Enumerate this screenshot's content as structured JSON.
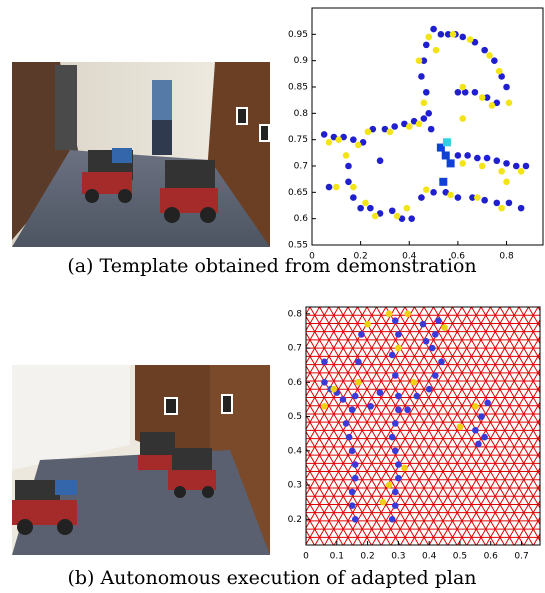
{
  "captions": [
    "(a) Template obtained from demonstration",
    "(b) Autonomous execution of adapted plan"
  ],
  "chart_data": [
    {
      "type": "scatter",
      "xlim": [
        0,
        0.95
      ],
      "xticks": [
        0,
        0.2,
        0.4,
        0.6,
        0.8
      ],
      "ylim": [
        0.55,
        1.0
      ],
      "yticks": [
        0.55,
        0.6,
        0.65,
        0.7,
        0.75,
        0.8,
        0.85,
        0.9,
        0.95
      ],
      "series": [
        {
          "color": "#1f1fd0",
          "marker": "circle",
          "x": [
            0.5,
            0.53,
            0.56,
            0.59,
            0.62,
            0.67,
            0.71,
            0.75,
            0.78,
            0.8,
            0.47,
            0.46,
            0.45,
            0.47,
            0.48,
            0.49,
            0.6,
            0.63,
            0.67,
            0.72,
            0.76,
            0.05,
            0.09,
            0.13,
            0.17,
            0.21,
            0.25,
            0.3,
            0.34,
            0.38,
            0.42,
            0.46,
            0.6,
            0.64,
            0.68,
            0.72,
            0.76,
            0.8,
            0.84,
            0.88,
            0.15,
            0.15,
            0.17,
            0.2,
            0.24,
            0.28,
            0.33,
            0.37,
            0.41,
            0.45,
            0.5,
            0.55,
            0.6,
            0.66,
            0.71,
            0.76,
            0.81,
            0.86,
            0.07,
            0.28
          ],
          "y": [
            0.96,
            0.95,
            0.95,
            0.95,
            0.945,
            0.935,
            0.92,
            0.9,
            0.87,
            0.85,
            0.93,
            0.9,
            0.87,
            0.84,
            0.8,
            0.77,
            0.84,
            0.84,
            0.84,
            0.83,
            0.82,
            0.76,
            0.755,
            0.755,
            0.75,
            0.745,
            0.77,
            0.77,
            0.775,
            0.78,
            0.785,
            0.79,
            0.72,
            0.72,
            0.715,
            0.715,
            0.71,
            0.705,
            0.7,
            0.7,
            0.7,
            0.67,
            0.64,
            0.62,
            0.62,
            0.61,
            0.615,
            0.6,
            0.6,
            0.64,
            0.65,
            0.65,
            0.64,
            0.64,
            0.635,
            0.63,
            0.63,
            0.62,
            0.66,
            0.71
          ]
        },
        {
          "color": "#f2e416",
          "marker": "circle",
          "x": [
            0.48,
            0.51,
            0.58,
            0.65,
            0.73,
            0.77,
            0.81,
            0.44,
            0.46,
            0.62,
            0.7,
            0.74,
            0.07,
            0.11,
            0.19,
            0.23,
            0.32,
            0.4,
            0.44,
            0.62,
            0.7,
            0.78,
            0.86,
            0.17,
            0.22,
            0.26,
            0.35,
            0.39,
            0.47,
            0.57,
            0.68,
            0.78,
            0.14,
            0.1,
            0.8,
            0.62
          ],
          "y": [
            0.945,
            0.92,
            0.95,
            0.94,
            0.91,
            0.88,
            0.82,
            0.9,
            0.82,
            0.85,
            0.83,
            0.815,
            0.745,
            0.75,
            0.74,
            0.765,
            0.765,
            0.775,
            0.78,
            0.705,
            0.7,
            0.69,
            0.69,
            0.66,
            0.63,
            0.605,
            0.605,
            0.62,
            0.655,
            0.645,
            0.64,
            0.62,
            0.72,
            0.66,
            0.67,
            0.79
          ]
        },
        {
          "color": "#1040d8",
          "marker": "square",
          "x": [
            0.55,
            0.57,
            0.54,
            0.53
          ],
          "y": [
            0.72,
            0.705,
            0.67,
            0.735
          ]
        },
        {
          "color": "#30d0e0",
          "marker": "square",
          "x": [
            0.555
          ],
          "y": [
            0.745
          ]
        }
      ]
    },
    {
      "type": "scatter",
      "mesh": true,
      "mesh_color": "#e00000",
      "xlim": [
        0,
        0.76
      ],
      "xticks": [
        0,
        0.1,
        0.2,
        0.3,
        0.4,
        0.5,
        0.6,
        0.7
      ],
      "ylim": [
        0.125,
        0.82
      ],
      "yticks": [
        0.2,
        0.3,
        0.4,
        0.5,
        0.6,
        0.7,
        0.8
      ],
      "series": [
        {
          "color": "#3a3ad8",
          "marker": "circle",
          "x": [
            0.16,
            0.15,
            0.15,
            0.16,
            0.16,
            0.15,
            0.14,
            0.13,
            0.15,
            0.16,
            0.17,
            0.17,
            0.18,
            0.06,
            0.08,
            0.1,
            0.12,
            0.28,
            0.29,
            0.29,
            0.3,
            0.3,
            0.29,
            0.28,
            0.29,
            0.3,
            0.3,
            0.29,
            0.28,
            0.3,
            0.29,
            0.36,
            0.4,
            0.42,
            0.44,
            0.41,
            0.42,
            0.43,
            0.39,
            0.38,
            0.55,
            0.57,
            0.59,
            0.56,
            0.58,
            0.06,
            0.21,
            0.24,
            0.33
          ],
          "y": [
            0.2,
            0.24,
            0.28,
            0.32,
            0.36,
            0.4,
            0.44,
            0.48,
            0.52,
            0.56,
            0.6,
            0.66,
            0.74,
            0.6,
            0.58,
            0.57,
            0.55,
            0.2,
            0.24,
            0.28,
            0.32,
            0.36,
            0.4,
            0.44,
            0.48,
            0.52,
            0.56,
            0.62,
            0.68,
            0.74,
            0.78,
            0.56,
            0.58,
            0.62,
            0.66,
            0.7,
            0.74,
            0.78,
            0.72,
            0.77,
            0.46,
            0.5,
            0.54,
            0.42,
            0.44,
            0.66,
            0.53,
            0.57,
            0.52
          ]
        },
        {
          "color": "#f0d010",
          "marker": "circle",
          "x": [
            0.2,
            0.27,
            0.17,
            0.33,
            0.06,
            0.09,
            0.27,
            0.32,
            0.35,
            0.45,
            0.5,
            0.55,
            0.25,
            0.3
          ],
          "y": [
            0.77,
            0.8,
            0.6,
            0.8,
            0.53,
            0.58,
            0.3,
            0.35,
            0.6,
            0.76,
            0.47,
            0.53,
            0.25,
            0.7
          ]
        }
      ]
    }
  ]
}
